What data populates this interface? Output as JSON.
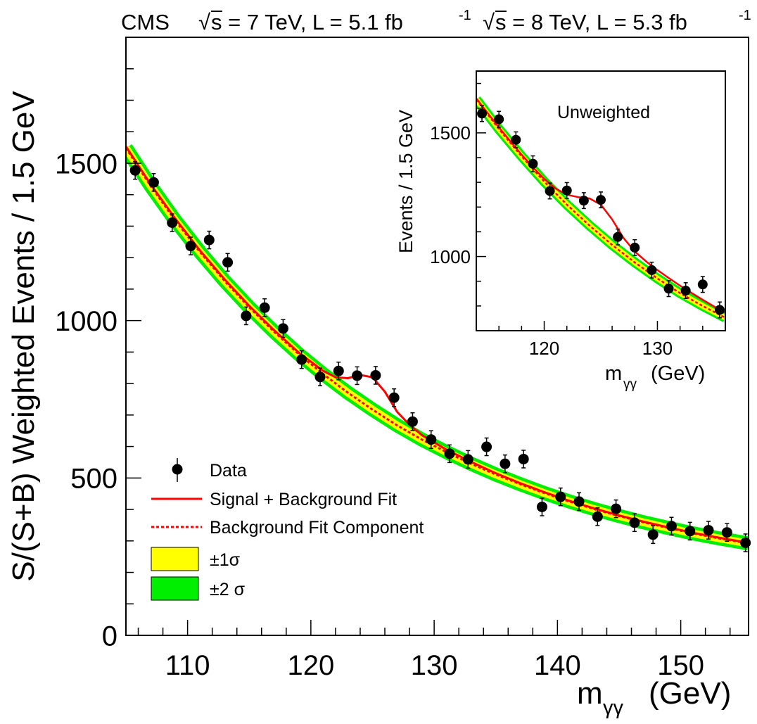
{
  "header": {
    "experiment": "CMS",
    "energy_7": "s = 7 TeV, L = 5.1 fb",
    "energy_8": "s = 8 TeV, L = 5.3 fb",
    "exponent": "-1"
  },
  "colors": {
    "band_2sigma": "#00ee00",
    "band_1sigma": "#ffff00",
    "fit": "#ff0000",
    "data": "#000000"
  },
  "legend": {
    "data": "Data",
    "sb_fit": "Signal + Background Fit",
    "bkg_fit": "Background Fit Component",
    "one_sigma": "±1σ",
    "two_sigma": "±2 σ"
  },
  "inset_label": "Unweighted",
  "chart_data": [
    {
      "type": "scatter",
      "ylabel": "S/(S+B) Weighted Events / 1.5 GeV",
      "xlabel": "m",
      "xlabel_sub": "γγ",
      "xunit": "(GeV)",
      "xlim": [
        105,
        155.5
      ],
      "ylim": [
        0,
        1900
      ],
      "x_ticks": [
        110,
        120,
        130,
        140,
        150
      ],
      "y_ticks": [
        0,
        500,
        1000,
        1500
      ],
      "series": [
        {
          "name": "Data",
          "x": [
            105.75,
            107.25,
            108.75,
            110.25,
            111.75,
            113.25,
            114.75,
            116.25,
            117.75,
            119.25,
            120.75,
            122.25,
            123.75,
            125.25,
            126.75,
            128.25,
            129.75,
            131.25,
            132.75,
            134.25,
            135.75,
            137.25,
            138.75,
            140.25,
            141.75,
            143.25,
            144.75,
            146.25,
            147.75,
            149.25,
            150.75,
            152.25,
            153.75,
            155.25
          ],
          "y": [
            1477,
            1439,
            1311,
            1237,
            1256,
            1185,
            1015,
            1041,
            975,
            876,
            821,
            840,
            825,
            826,
            755,
            679,
            622,
            577,
            559,
            599,
            545,
            560,
            408,
            440,
            425,
            377,
            402,
            358,
            320,
            347,
            331,
            334,
            327,
            294
          ],
          "yerr": 28
        },
        {
          "name": "Signal + Background Fit",
          "x": [
            105,
            107,
            109,
            111,
            113,
            115,
            117,
            119,
            121,
            122,
            123,
            124,
            125,
            126,
            127,
            128,
            129,
            131,
            133,
            135,
            137,
            139,
            141,
            143,
            145,
            147,
            149,
            151,
            153,
            155.5
          ],
          "y": [
            1553,
            1433,
            1324,
            1223,
            1131,
            1047,
            970,
            899,
            840,
            820,
            817,
            827,
            820,
            774,
            710,
            669,
            636,
            590,
            551,
            515,
            483,
            454,
            427,
            403,
            381,
            361,
            343,
            326,
            311,
            294
          ]
        },
        {
          "name": "Background Fit Component",
          "x": [
            105,
            107,
            109,
            111,
            113,
            115,
            117,
            119,
            121,
            123,
            125,
            127,
            129,
            131,
            133,
            135,
            137,
            139,
            141,
            143,
            145,
            147,
            149,
            151,
            153,
            155.5
          ],
          "y": [
            1548,
            1428,
            1318,
            1218,
            1126,
            1042,
            965,
            894,
            830,
            771,
            717,
            667,
            622,
            582,
            545,
            511,
            480,
            451,
            425,
            401,
            379,
            359,
            341,
            324,
            309,
            292
          ]
        }
      ],
      "band_1sigma_halfwidth": 10,
      "band_2sigma_halfwidth": 20
    },
    {
      "type": "scatter",
      "title": "Unweighted",
      "ylabel": "Events / 1.5 GeV",
      "xlabel": "m",
      "xlabel_sub": "γγ",
      "xunit": "(GeV)",
      "xlim": [
        114,
        136
      ],
      "ylim": [
        700,
        1750
      ],
      "x_ticks": [
        120,
        130
      ],
      "y_ticks": [
        1000,
        1500
      ],
      "series": [
        {
          "name": "Data",
          "x": [
            114.5,
            116,
            117.5,
            119,
            120.5,
            122,
            123.5,
            125,
            126.5,
            128,
            129.5,
            131,
            132.5,
            134,
            135.5
          ],
          "y": [
            1578,
            1555,
            1472,
            1375,
            1265,
            1267,
            1226,
            1229,
            1079,
            1036,
            945,
            870,
            862,
            887,
            784
          ],
          "yerr": 32
        },
        {
          "name": "Signal + Background Fit",
          "x": [
            114,
            115,
            116,
            117,
            118,
            119,
            120,
            121,
            122,
            123,
            124,
            125,
            126,
            127,
            128,
            129,
            130,
            131,
            132,
            133,
            134,
            135,
            136
          ],
          "y": [
            1640,
            1580,
            1522,
            1466,
            1412,
            1361,
            1314,
            1275,
            1250,
            1240,
            1235,
            1210,
            1150,
            1075,
            1020,
            980,
            945,
            913,
            882,
            853,
            825,
            798,
            773
          ]
        },
        {
          "name": "Background Fit Component",
          "x": [
            114,
            116,
            118,
            120,
            122,
            124,
            126,
            128,
            130,
            132,
            134,
            136
          ],
          "y": [
            1635,
            1515,
            1405,
            1303,
            1210,
            1125,
            1047,
            976,
            911,
            852,
            800,
            752
          ]
        }
      ],
      "band_1sigma_halfwidth": 10,
      "band_2sigma_halfwidth": 20
    }
  ]
}
